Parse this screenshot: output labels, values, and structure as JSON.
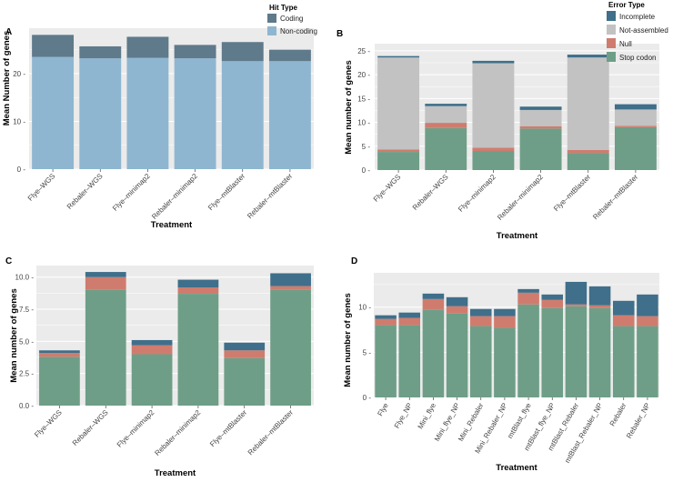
{
  "colors": {
    "panel_bg": "#ebebeb",
    "grid": "#ffffff",
    "coding": "#5f7a8a",
    "non_coding": "#8fb6d0",
    "incomplete": "#3f6f8a",
    "not_assembled": "#c2c2c2",
    "null": "#cf7c6e",
    "stop_codon": "#6e9e87"
  },
  "chart_data": [
    {
      "panel": "A",
      "type": "bar",
      "stacked": true,
      "title": "",
      "xlabel": "Treatment",
      "ylabel": "Mean Number of genes",
      "ylim": [
        0,
        29.5
      ],
      "yticks": [
        0,
        10,
        20
      ],
      "ytick_labels": [
        "0 -",
        "10 -",
        "20 -"
      ],
      "categories": [
        "Flye–WGS",
        "Rebaler–WGS",
        "Flye–minimap2",
        "Rebaler–minimap2",
        "Flye–mtBlaster",
        "Rebaler–mtBlaster"
      ],
      "legend": {
        "title": "Hit Type",
        "position": "top-right",
        "entries": [
          "Coding",
          "Non-coding"
        ]
      },
      "series": [
        {
          "name": "Non-coding",
          "color_key": "non_coding",
          "values": [
            23.5,
            23.2,
            23.3,
            23.2,
            22.6,
            22.6
          ]
        },
        {
          "name": "Coding",
          "color_key": "coding",
          "values": [
            4.6,
            2.5,
            4.4,
            2.8,
            4.0,
            2.4
          ]
        }
      ]
    },
    {
      "panel": "B",
      "type": "bar",
      "stacked": true,
      "title": "",
      "xlabel": "Treatment",
      "ylabel": "Mean number of genes",
      "ylim": [
        0,
        26.5
      ],
      "yticks": [
        0,
        5,
        10,
        15,
        20,
        25
      ],
      "ytick_labels": [
        "0 -",
        "5 -",
        "10 -",
        "15 -",
        "20 -",
        "25 -"
      ],
      "categories": [
        "Flye–WGS",
        "Rebaler–WGS",
        "Flye–minimap2",
        "Rebaler–minimap2",
        "Flye–mtBlaster",
        "Rebaler–mtBlaster"
      ],
      "legend": {
        "title": "Error Type",
        "position": "top-right",
        "entries": [
          "Incomplete",
          "Not-assembled",
          "Null",
          "Stop codon"
        ]
      },
      "series": [
        {
          "name": "Stop codon",
          "color_key": "stop_codon",
          "values": [
            3.8,
            8.8,
            4.0,
            8.7,
            3.6,
            9.0
          ]
        },
        {
          "name": "Null",
          "color_key": "null",
          "values": [
            0.5,
            1.1,
            0.7,
            0.5,
            0.6,
            0.3
          ]
        },
        {
          "name": "Not-assembled",
          "color_key": "not_assembled",
          "values": [
            19.3,
            3.5,
            17.7,
            3.4,
            19.4,
            3.4
          ]
        },
        {
          "name": "Incomplete",
          "color_key": "incomplete",
          "values": [
            0.3,
            0.5,
            0.5,
            0.7,
            0.6,
            1.1
          ]
        }
      ]
    },
    {
      "panel": "C",
      "type": "bar",
      "stacked": true,
      "title": "",
      "xlabel": "Treatment",
      "ylabel": "Mean number of genes",
      "ylim": [
        0,
        10.9
      ],
      "yticks": [
        0,
        2.5,
        5,
        7.5,
        10
      ],
      "ytick_labels": [
        "0.0 -",
        "2.5 -",
        "5.0 -",
        "7.5 -",
        "10.0 -"
      ],
      "categories": [
        "Flye–WGS",
        "Rebaler–WGS",
        "Flye–minimap2",
        "Rebaler–minimap2",
        "Flye–mtBlaster",
        "Rebaler–mtBlaster"
      ],
      "series": [
        {
          "name": "Stop codon",
          "color_key": "stop_codon",
          "values": [
            3.8,
            9.0,
            4.0,
            8.7,
            3.7,
            9.0
          ]
        },
        {
          "name": "Null",
          "color_key": "null",
          "values": [
            0.3,
            1.0,
            0.7,
            0.5,
            0.6,
            0.3
          ]
        },
        {
          "name": "Incomplete",
          "color_key": "incomplete",
          "values": [
            0.2,
            0.4,
            0.4,
            0.6,
            0.6,
            1.0
          ]
        }
      ]
    },
    {
      "panel": "D",
      "type": "bar",
      "stacked": true,
      "title": "",
      "xlabel": "Treatment",
      "ylabel": "Mean number of genes",
      "ylim": [
        0,
        13.8
      ],
      "yticks": [
        0,
        5,
        10
      ],
      "ytick_labels": [
        "0 -",
        "5 -",
        "10 -"
      ],
      "categories": [
        "Flye",
        "Flye_NP",
        "Mini_flye",
        "Mini_flye_NP",
        "Mini_Rebaler",
        "Mini_Rebaler_NP",
        "mtBlast_flye",
        "mtBlast_flye_NP",
        "mtBlast_Rebaler",
        "mtBlast_Rebaler_NP",
        "Rebaler",
        "Rebaler_NP"
      ],
      "series": [
        {
          "name": "Stop codon",
          "color_key": "stop_codon",
          "values": [
            8.0,
            8.0,
            9.7,
            9.3,
            7.9,
            7.7,
            10.3,
            9.9,
            10.1,
            9.9,
            7.9,
            7.9
          ]
        },
        {
          "name": "Null",
          "color_key": "null",
          "values": [
            0.7,
            0.8,
            1.2,
            0.8,
            1.1,
            1.3,
            1.3,
            0.9,
            0.2,
            0.3,
            1.2,
            1.1
          ]
        },
        {
          "name": "Incomplete",
          "color_key": "incomplete",
          "values": [
            0.4,
            0.6,
            0.6,
            1.0,
            0.8,
            0.8,
            0.4,
            0.6,
            2.5,
            2.1,
            1.6,
            2.4
          ]
        }
      ]
    }
  ]
}
